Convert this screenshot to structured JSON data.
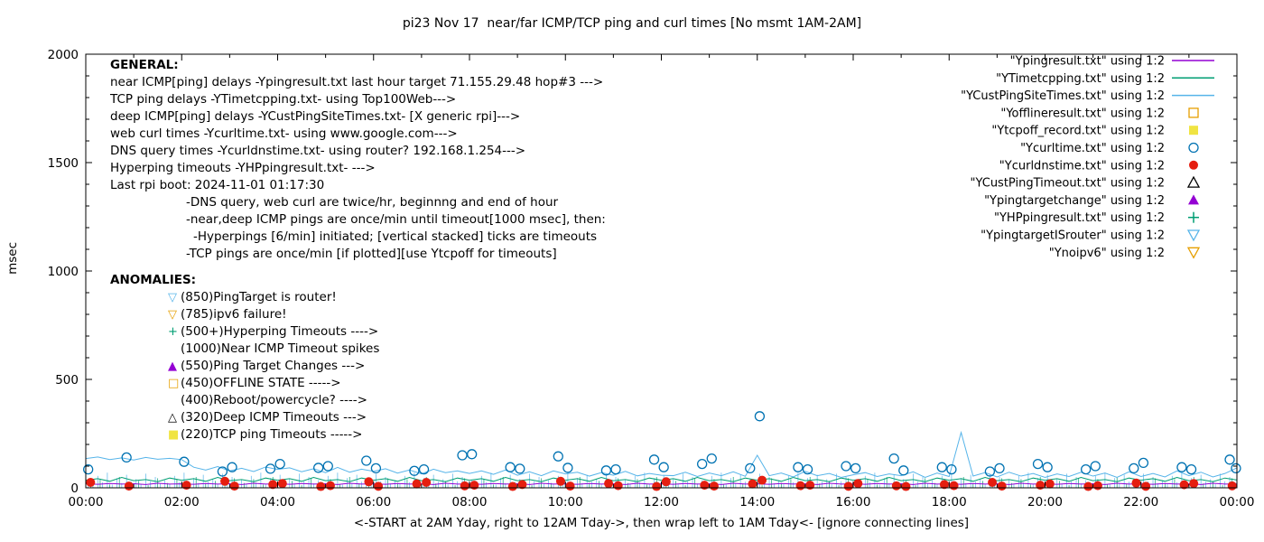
{
  "chart_data": {
    "type": "line",
    "title": "pi23 Nov 17  near/far ICMP/TCP ping and curl times [No msmt 1AM-2AM]",
    "xlabel": "<-START at 2AM Yday, right to 12AM Tday->, then wrap left to 1AM Tday<- [ignore connecting lines]",
    "ylabel": "msec",
    "x_range": [
      0,
      24
    ],
    "y_range": [
      0,
      2000
    ],
    "x_tick_labels": [
      "00:00",
      "02:00",
      "04:00",
      "06:00",
      "08:00",
      "10:00",
      "12:00",
      "14:00",
      "16:00",
      "18:00",
      "20:00",
      "22:00",
      "00:00"
    ],
    "y_tick_values": [
      0,
      500,
      1000,
      1500,
      2000
    ],
    "legend_position": "top-right",
    "grid": false,
    "legend": [
      {
        "label": "\"Ypingresult.txt\" using 1:2",
        "marker": "line",
        "color": "#9400D3"
      },
      {
        "label": "\"YTimetcpping.txt\" using 1:2",
        "marker": "line",
        "color": "#009E73"
      },
      {
        "label": "\"YCustPingSiteTimes.txt\" using 1:2",
        "marker": "line",
        "color": "#56B4E9"
      },
      {
        "label": "\"Yofflineresult.txt\" using 1:2",
        "marker": "square-open",
        "color": "#E69F00"
      },
      {
        "label": "\"Ytcpoff_record.txt\" using 1:2",
        "marker": "square-filled",
        "color": "#F0E442"
      },
      {
        "label": "\"Ycurltime.txt\" using 1:2",
        "marker": "circle-open",
        "color": "#0072B2"
      },
      {
        "label": "\"Ycurldnstime.txt\" using 1:2",
        "marker": "circle-filled",
        "color": "#E51E10"
      },
      {
        "label": "\"YCustPingTimeout.txt\" using 1:2",
        "marker": "triangle-up-open",
        "color": "#000000"
      },
      {
        "label": "\"Ypingtargetchange\" using 1:2",
        "marker": "triangle-up-filled",
        "color": "#9400D3"
      },
      {
        "label": "\"YHPpingresult.txt\" using 1:2",
        "marker": "plus",
        "color": "#009E73"
      },
      {
        "label": "\"YpingtargetISrouter\" using 1:2",
        "marker": "triangle-down-open",
        "color": "#56B4E9"
      },
      {
        "label": "\"Ynoipv6\" using 1:2",
        "marker": "triangle-down-open",
        "color": "#E69F00"
      }
    ],
    "line_series": [
      {
        "name": "Ypingresult",
        "color": "#9400D3",
        "x_start": 0,
        "x_step": 0.25,
        "y": [
          18,
          16,
          20,
          17,
          19,
          15,
          21,
          17,
          18,
          16,
          20,
          17,
          19,
          15,
          21,
          17,
          18,
          16,
          20,
          17,
          19,
          15,
          21,
          17,
          18,
          16,
          20,
          17,
          19,
          15,
          21,
          17,
          18,
          16,
          20,
          17,
          19,
          15,
          21,
          17,
          18,
          16,
          20,
          17,
          19,
          15,
          21,
          17,
          18,
          16,
          20,
          17,
          19,
          15,
          21,
          17,
          18,
          16,
          20,
          17,
          19,
          15,
          21,
          17,
          18,
          16,
          20,
          17,
          19,
          15,
          21,
          17,
          18,
          16,
          20,
          17,
          19,
          15,
          21,
          17,
          18,
          16,
          20,
          17,
          19,
          15,
          21,
          17,
          18,
          16,
          20,
          17,
          19,
          15,
          21,
          17,
          18
        ]
      },
      {
        "name": "YTimetcpping",
        "color": "#009E73",
        "x_start": 0,
        "x_step": 0.25,
        "y": [
          35,
          42,
          30,
          48,
          33,
          38,
          28,
          45,
          35,
          42,
          30,
          48,
          33,
          38,
          28,
          45,
          35,
          42,
          30,
          48,
          33,
          38,
          28,
          45,
          35,
          42,
          30,
          48,
          33,
          38,
          28,
          45,
          35,
          42,
          30,
          48,
          33,
          38,
          28,
          45,
          35,
          42,
          30,
          48,
          33,
          38,
          28,
          45,
          35,
          42,
          30,
          48,
          33,
          38,
          28,
          45,
          35,
          42,
          30,
          48,
          33,
          38,
          28,
          45,
          35,
          42,
          30,
          48,
          33,
          38,
          28,
          45,
          35,
          42,
          30,
          48,
          33,
          38,
          28,
          45,
          35,
          42,
          30,
          48,
          33,
          38,
          28,
          45,
          35,
          42,
          30,
          48,
          33,
          38,
          28,
          45,
          36
        ]
      },
      {
        "name": "YCustPingSiteTimes",
        "color": "#56B4E9",
        "x_start": 0,
        "x_step": 0.25,
        "y": [
          135,
          142,
          130,
          138,
          128,
          140,
          132,
          136,
          130,
          95,
          82,
          98,
          78,
          90,
          75,
          96,
          85,
          92,
          74,
          88,
          70,
          94,
          72,
          86,
          76,
          88,
          68,
          82,
          64,
          86,
          70,
          78,
          66,
          78,
          62,
          82,
          58,
          74,
          56,
          78,
          64,
          72,
          54,
          70,
          58,
          76,
          55,
          66,
          58,
          56,
          72,
          52,
          68,
          56,
          74,
          53,
          150,
          56,
          68,
          50,
          76,
          56,
          66,
          48,
          60,
          70,
          52,
          64,
          56,
          74,
          48,
          68,
          52,
          255,
          54,
          70,
          50,
          72,
          54,
          66,
          48,
          64,
          52,
          72,
          54,
          68,
          48,
          74,
          52,
          66,
          50,
          78,
          56,
          72,
          50,
          66,
          92
        ]
      }
    ],
    "scatter_series": [
      {
        "name": "Ycurltime",
        "color": "#0072B2",
        "marker": "circle-open",
        "points": [
          [
            0.05,
            85
          ],
          [
            0.85,
            140
          ],
          [
            2.05,
            120
          ],
          [
            2.85,
            75
          ],
          [
            3.05,
            95
          ],
          [
            3.85,
            88
          ],
          [
            4.05,
            110
          ],
          [
            4.85,
            92
          ],
          [
            5.05,
            100
          ],
          [
            5.85,
            125
          ],
          [
            6.05,
            90
          ],
          [
            6.85,
            78
          ],
          [
            7.05,
            85
          ],
          [
            7.85,
            150
          ],
          [
            8.05,
            155
          ],
          [
            8.85,
            95
          ],
          [
            9.05,
            88
          ],
          [
            9.85,
            145
          ],
          [
            10.05,
            92
          ],
          [
            10.85,
            80
          ],
          [
            11.05,
            85
          ],
          [
            11.85,
            130
          ],
          [
            12.05,
            95
          ],
          [
            12.85,
            110
          ],
          [
            13.05,
            135
          ],
          [
            13.85,
            90
          ],
          [
            14.05,
            330
          ],
          [
            14.85,
            95
          ],
          [
            15.05,
            85
          ],
          [
            15.85,
            100
          ],
          [
            16.05,
            90
          ],
          [
            16.85,
            135
          ],
          [
            17.05,
            80
          ],
          [
            17.85,
            95
          ],
          [
            18.05,
            85
          ],
          [
            18.85,
            75
          ],
          [
            19.05,
            90
          ],
          [
            19.85,
            110
          ],
          [
            20.05,
            95
          ],
          [
            20.85,
            85
          ],
          [
            21.05,
            100
          ],
          [
            21.85,
            90
          ],
          [
            22.05,
            115
          ],
          [
            22.85,
            95
          ],
          [
            23.05,
            85
          ],
          [
            23.85,
            130
          ],
          [
            23.98,
            90
          ]
        ]
      },
      {
        "name": "Ycurldnstime",
        "color": "#E51E10",
        "marker": "circle-filled",
        "points": [
          [
            0.1,
            25
          ],
          [
            0.9,
            8
          ],
          [
            2.1,
            12
          ],
          [
            2.9,
            30
          ],
          [
            3.1,
            8
          ],
          [
            3.9,
            15
          ],
          [
            4.1,
            20
          ],
          [
            4.9,
            6
          ],
          [
            5.1,
            10
          ],
          [
            5.9,
            28
          ],
          [
            6.1,
            7
          ],
          [
            6.9,
            18
          ],
          [
            7.1,
            25
          ],
          [
            7.9,
            9
          ],
          [
            8.1,
            12
          ],
          [
            8.9,
            6
          ],
          [
            9.1,
            15
          ],
          [
            9.9,
            30
          ],
          [
            10.1,
            8
          ],
          [
            10.9,
            20
          ],
          [
            11.1,
            10
          ],
          [
            11.9,
            6
          ],
          [
            12.1,
            28
          ],
          [
            12.9,
            12
          ],
          [
            13.1,
            8
          ],
          [
            13.9,
            18
          ],
          [
            14.1,
            35
          ],
          [
            14.9,
            10
          ],
          [
            15.1,
            12
          ],
          [
            15.9,
            7
          ],
          [
            16.1,
            20
          ],
          [
            16.9,
            9
          ],
          [
            17.1,
            6
          ],
          [
            17.9,
            15
          ],
          [
            18.1,
            10
          ],
          [
            18.9,
            25
          ],
          [
            19.1,
            8
          ],
          [
            19.9,
            12
          ],
          [
            20.1,
            18
          ],
          [
            20.9,
            6
          ],
          [
            21.1,
            10
          ],
          [
            21.9,
            22
          ],
          [
            22.1,
            7
          ],
          [
            22.9,
            14
          ],
          [
            23.1,
            20
          ],
          [
            23.9,
            9
          ]
        ]
      }
    ],
    "spike_series": [
      {
        "name": "near-deep-ping-ticks",
        "color": "#56B4E9",
        "x_start": 0.05,
        "x_step": 0.1,
        "count": 240,
        "heights": [
          35,
          18,
          55,
          25,
          70,
          15,
          45,
          22,
          60,
          28,
          40,
          16,
          65,
          30,
          50,
          20
        ]
      },
      {
        "name": "hyperping-ticks",
        "color": "#009E73",
        "x_start": 0.1,
        "x_step": 0.2,
        "count": 120,
        "heights": [
          22,
          40,
          15,
          50,
          20,
          32,
          12,
          44
        ]
      }
    ]
  },
  "general": {
    "heading": "GENERAL:",
    "lines": [
      "near ICMP[ping] delays -Ypingresult.txt last hour target 71.155.29.48 hop#3 --->",
      "TCP ping delays -YTimetcpping.txt- using Top100Web--->",
      "deep ICMP[ping] delays -YCustPingSiteTimes.txt- [X generic rpi]--->",
      "web curl times -Ycurltime.txt- using www.google.com--->",
      "DNS query times -Ycurldnstime.txt- using router? 192.168.1.254--->",
      "Hyperping timeouts -YHPpingresult.txt- --->",
      "Last rpi boot: 2024-11-01 01:17:30",
      "-DNS query, web curl are twice/hr, beginnng and end of hour",
      "-near,deep ICMP pings are once/min until timeout[1000 msec], then:",
      "-Hyperpings [6/min] initiated; [vertical stacked] ticks are timeouts",
      "-TCP pings are once/min [if plotted][use Ytcpoff for timeouts]"
    ]
  },
  "anomalies": {
    "heading": "ANOMALIES:",
    "items": [
      {
        "marker": "triangle-down-open",
        "color": "#56B4E9",
        "text": "(850)PingTarget is router!"
      },
      {
        "marker": "triangle-down-open",
        "color": "#E69F00",
        "text": "(785)ipv6 failure!"
      },
      {
        "marker": "plus",
        "color": "#009E73",
        "text": "(500+)Hyperping Timeouts ---->"
      },
      {
        "marker": "none",
        "color": "",
        "text": "(1000)Near ICMP Timeout spikes"
      },
      {
        "marker": "triangle-up-filled",
        "color": "#9400D3",
        "text": "(550)Ping Target Changes --->"
      },
      {
        "marker": "square-open",
        "color": "#E69F00",
        "text": "(450)OFFLINE STATE ----->"
      },
      {
        "marker": "none",
        "color": "",
        "text": "(400)Reboot/powercycle? ---->"
      },
      {
        "marker": "triangle-up-open",
        "color": "#000000",
        "text": "(320)Deep ICMP Timeouts --->"
      },
      {
        "marker": "square-filled",
        "color": "#F0E442",
        "text": "(220)TCP ping Timeouts ----->"
      }
    ]
  }
}
